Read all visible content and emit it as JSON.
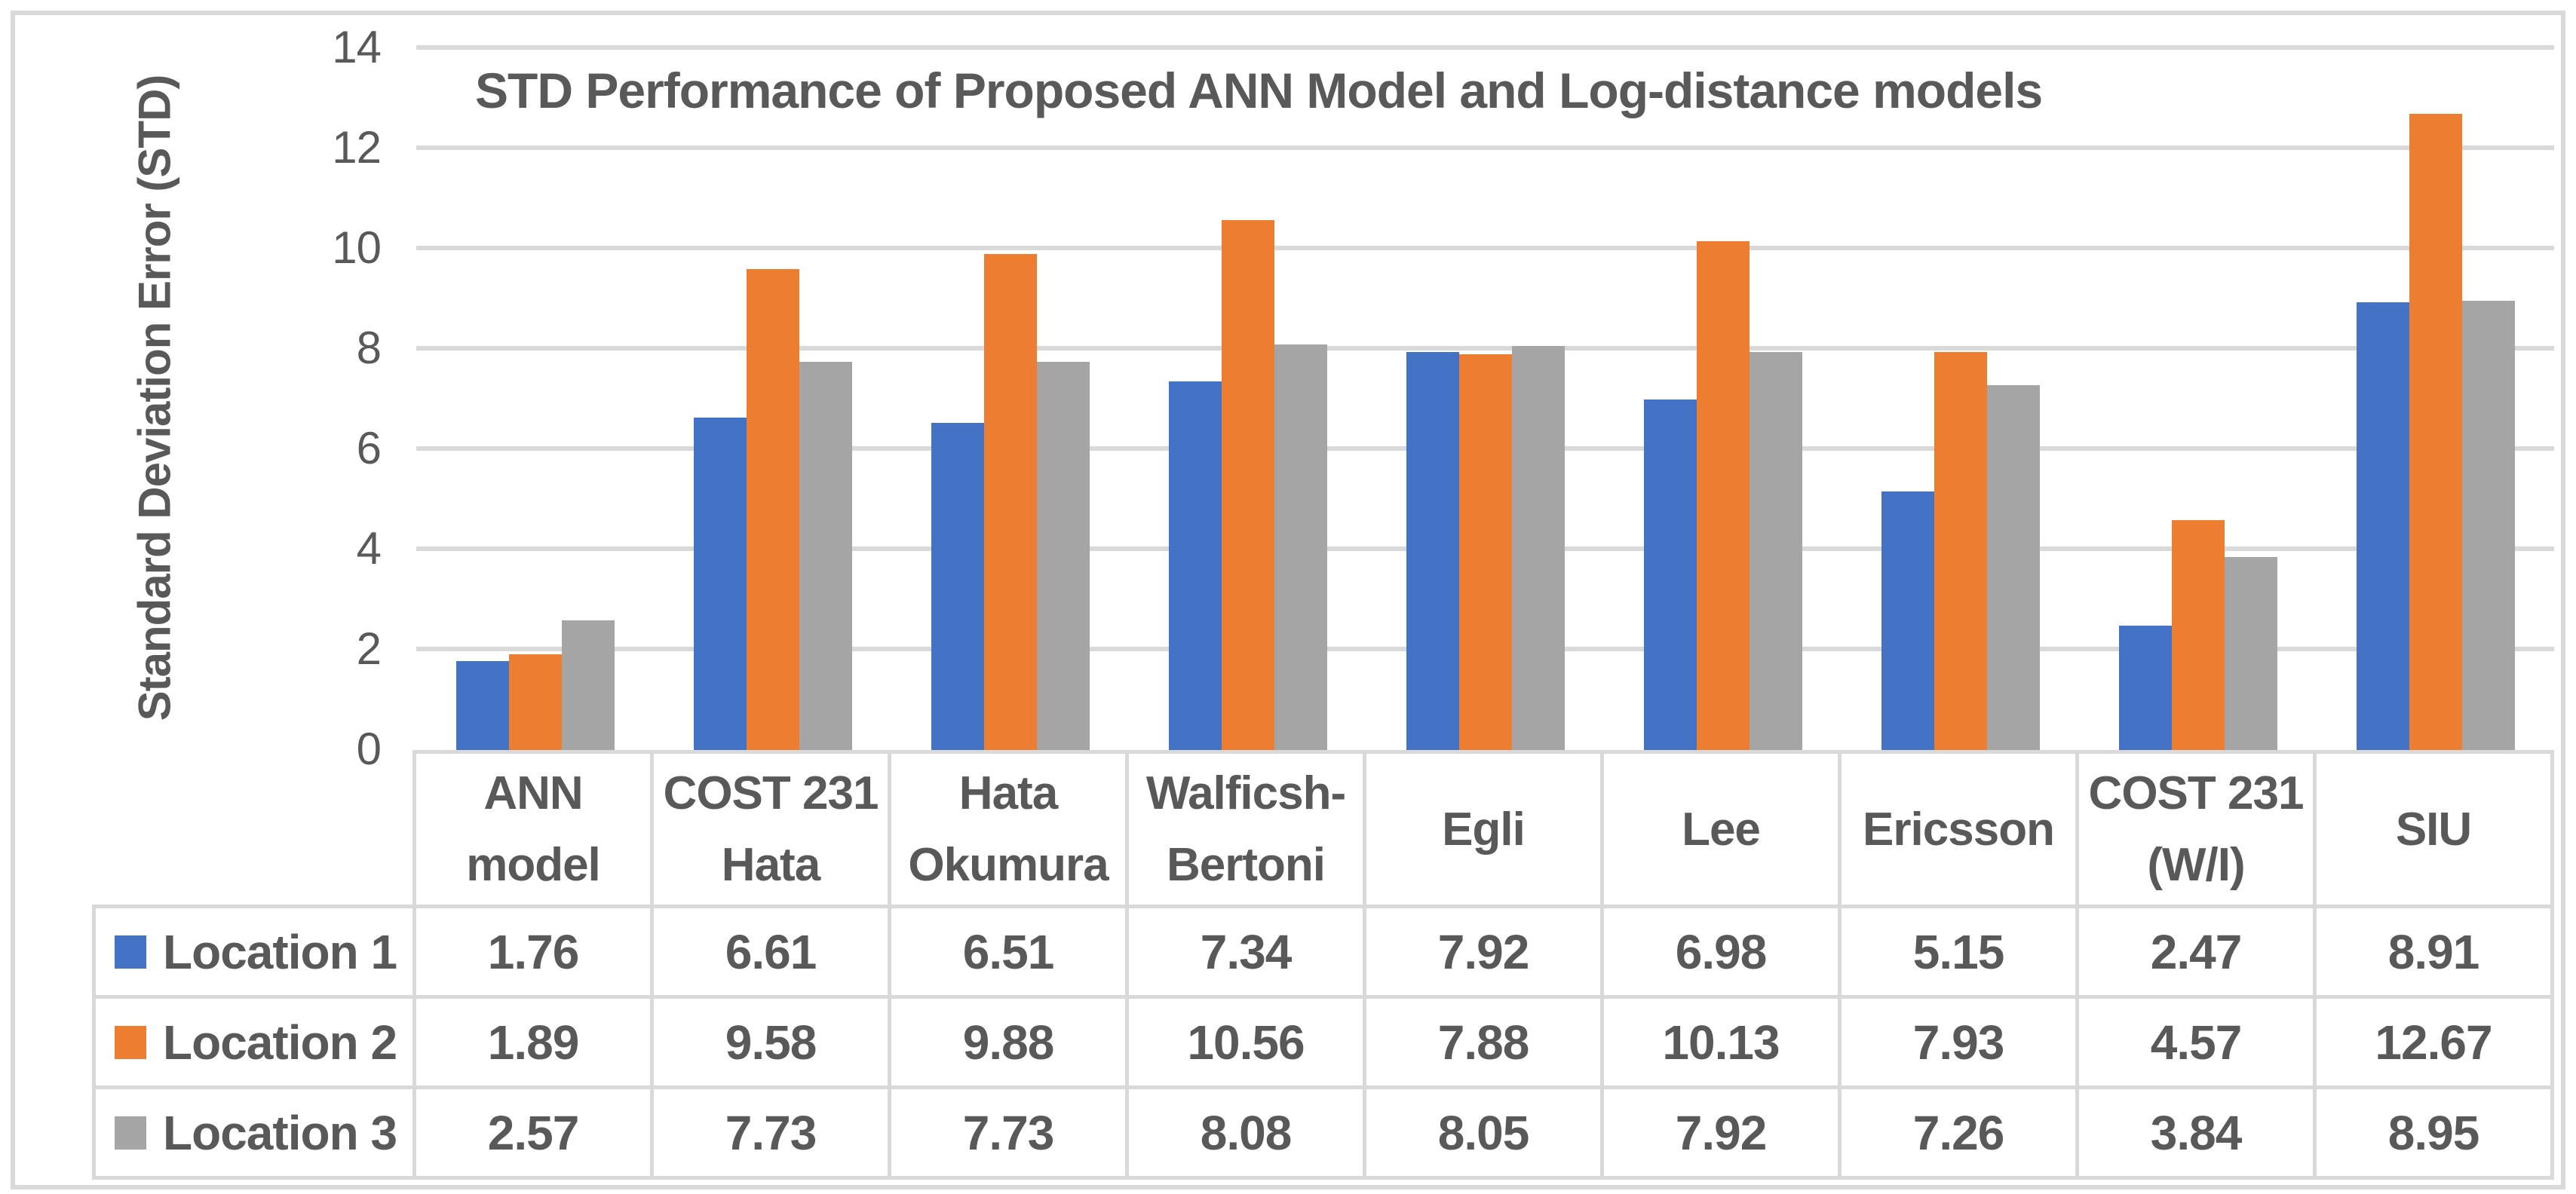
{
  "chart": {
    "title": "STD Performance of Proposed ANN Model and Log-distance models",
    "y_axis_label": "Standard Deviation Error (STD)"
  },
  "chart_data": {
    "type": "bar",
    "title": "STD Performance of Proposed ANN Model and Log-distance models",
    "xlabel": "",
    "ylabel": "Standard Deviation Error (STD)",
    "categories": [
      "ANN model",
      "COST 231 Hata",
      "Hata Okumura",
      "Walficsh-Bertoni",
      "Egli",
      "Lee",
      "Ericsson",
      "COST 231 (W/I)",
      "SIU"
    ],
    "series": [
      {
        "name": "Location 1",
        "color": "#4472C4",
        "values": [
          1.76,
          6.61,
          6.51,
          7.34,
          7.92,
          6.98,
          5.15,
          2.47,
          8.91
        ]
      },
      {
        "name": "Location 2",
        "color": "#ED7D31",
        "values": [
          1.89,
          9.58,
          9.88,
          10.56,
          7.88,
          10.13,
          7.93,
          4.57,
          12.67
        ]
      },
      {
        "name": "Location 3",
        "color": "#A5A5A5",
        "values": [
          2.57,
          7.73,
          7.73,
          8.08,
          8.05,
          7.92,
          7.26,
          3.84,
          8.95
        ]
      }
    ],
    "ylim": [
      0,
      14
    ],
    "yticks": [
      0,
      2,
      4,
      6,
      8,
      10,
      12,
      14
    ],
    "grid": true,
    "legend_position": "data-table-left-column",
    "value_decimals": 2,
    "colors": {
      "gridline": "#D9D9D9",
      "table_border": "#D9D9D9",
      "text": "#595959",
      "frame": "#D9D9D9"
    }
  }
}
